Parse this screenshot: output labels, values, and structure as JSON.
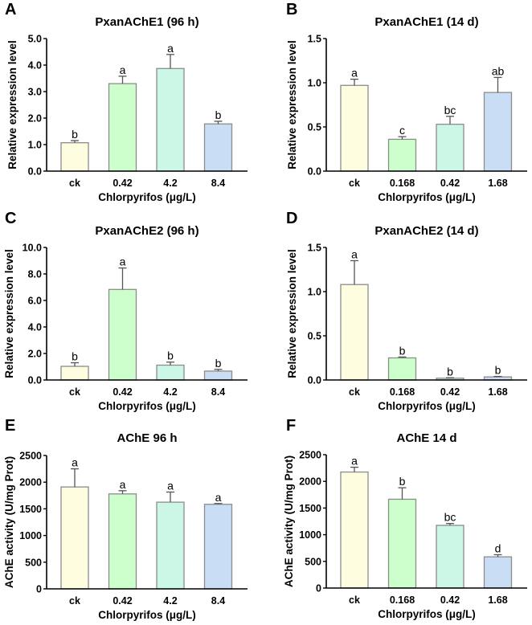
{
  "figure": {
    "colors": {
      "bar_fills": [
        "#fffde0",
        "#ccffcc",
        "#ccf7e6",
        "#c9ddf5"
      ],
      "bar_stroke": "#8c8c8c",
      "axis": "#000000"
    }
  },
  "chart_data": [
    {
      "id": "A",
      "type": "bar",
      "panel_letter": "A",
      "title": "PxanAChE1 (96 h)",
      "xlabel": "Chlorpyrifos (μg/L)",
      "ylabel": "Relative expression level",
      "categories": [
        "ck",
        "0.42",
        "4.2",
        "8.4"
      ],
      "values": [
        1.07,
        3.3,
        3.87,
        1.78
      ],
      "errors": [
        0.08,
        0.28,
        0.53,
        0.1
      ],
      "significance": [
        "b",
        "a",
        "a",
        "b"
      ],
      "ylim": [
        0,
        5
      ],
      "yticks": [
        0,
        1,
        2,
        3,
        4,
        5
      ],
      "ytick_labels": [
        "0.0",
        "1.0",
        "2.0",
        "3.0",
        "4.0",
        "5.0"
      ],
      "grid": false
    },
    {
      "id": "B",
      "type": "bar",
      "panel_letter": "B",
      "title": "PxanAChE1 (14 d)",
      "xlabel": "Chlorpyrifos (μg/L)",
      "ylabel": "Relative expression level",
      "categories": [
        "ck",
        "0.168",
        "0.42",
        "1.68"
      ],
      "values": [
        0.97,
        0.36,
        0.53,
        0.89
      ],
      "errors": [
        0.07,
        0.03,
        0.09,
        0.17
      ],
      "significance": [
        "a",
        "c",
        "bc",
        "ab"
      ],
      "ylim": [
        0,
        1.5
      ],
      "yticks": [
        0,
        0.5,
        1.0,
        1.5
      ],
      "ytick_labels": [
        "0.0",
        "0.5",
        "1.0",
        "1.5"
      ],
      "grid": false
    },
    {
      "id": "C",
      "type": "bar",
      "panel_letter": "C",
      "title": "PxanAChE2 (96 h)",
      "xlabel": "Chlorpyrifos (μg/L)",
      "ylabel": "Relative expression level",
      "categories": [
        "ck",
        "0.42",
        "4.2",
        "8.4"
      ],
      "values": [
        1.03,
        6.83,
        1.12,
        0.67
      ],
      "errors": [
        0.27,
        1.62,
        0.23,
        0.13
      ],
      "significance": [
        "b",
        "a",
        "b",
        "b"
      ],
      "ylim": [
        0,
        10
      ],
      "yticks": [
        0,
        2,
        4,
        6,
        8,
        10
      ],
      "ytick_labels": [
        "0.0",
        "2.0",
        "4.0",
        "6.0",
        "8.0",
        "10.0"
      ],
      "grid": false
    },
    {
      "id": "D",
      "type": "bar",
      "panel_letter": "D",
      "title": "PxanAChE2 (14 d)",
      "xlabel": "Chlorpyrifos (μg/L)",
      "ylabel": "Relative expression level",
      "categories": [
        "ck",
        "0.168",
        "0.42",
        "1.68"
      ],
      "values": [
        1.08,
        0.25,
        0.02,
        0.035
      ],
      "errors": [
        0.27,
        0.01,
        0.005,
        0.005
      ],
      "significance": [
        "a",
        "b",
        "b",
        "b"
      ],
      "ylim": [
        0,
        1.5
      ],
      "yticks": [
        0,
        0.5,
        1.0,
        1.5
      ],
      "ytick_labels": [
        "0.0",
        "0.5",
        "1.0",
        "1.5"
      ],
      "grid": false
    },
    {
      "id": "E",
      "type": "bar",
      "panel_letter": "E",
      "title": "AChE 96 h",
      "xlabel": "Chlorpyrifos (μg/L)",
      "ylabel": "AChE activity (U/mg Prot)",
      "categories": [
        "ck",
        "0.42",
        "4.2",
        "8.4"
      ],
      "values": [
        1910,
        1780,
        1625,
        1585
      ],
      "errors": [
        340,
        60,
        190,
        15
      ],
      "significance": [
        "a",
        "a",
        "a",
        "a"
      ],
      "ylim": [
        0,
        2500
      ],
      "yticks": [
        0,
        500,
        1000,
        1500,
        2000,
        2500
      ],
      "ytick_labels": [
        "0",
        "500",
        "1000",
        "1500",
        "2000",
        "2500"
      ],
      "grid": false
    },
    {
      "id": "F",
      "type": "bar",
      "panel_letter": "F",
      "title": "AChE 14 d",
      "xlabel": "Chlorpyrifos (μg/L)",
      "ylabel": "AChE activity (U/mg Prot)",
      "categories": [
        "ck",
        "0.168",
        "0.42",
        "1.68"
      ],
      "values": [
        2175,
        1665,
        1175,
        585
      ],
      "errors": [
        90,
        215,
        35,
        40
      ],
      "significance": [
        "a",
        "b",
        "bc",
        "d"
      ],
      "ylim": [
        0,
        2500
      ],
      "yticks": [
        0,
        500,
        1000,
        1500,
        2000,
        2500
      ],
      "ytick_labels": [
        "0",
        "500",
        "1000",
        "1500",
        "2000",
        "2500"
      ],
      "grid": false
    }
  ]
}
